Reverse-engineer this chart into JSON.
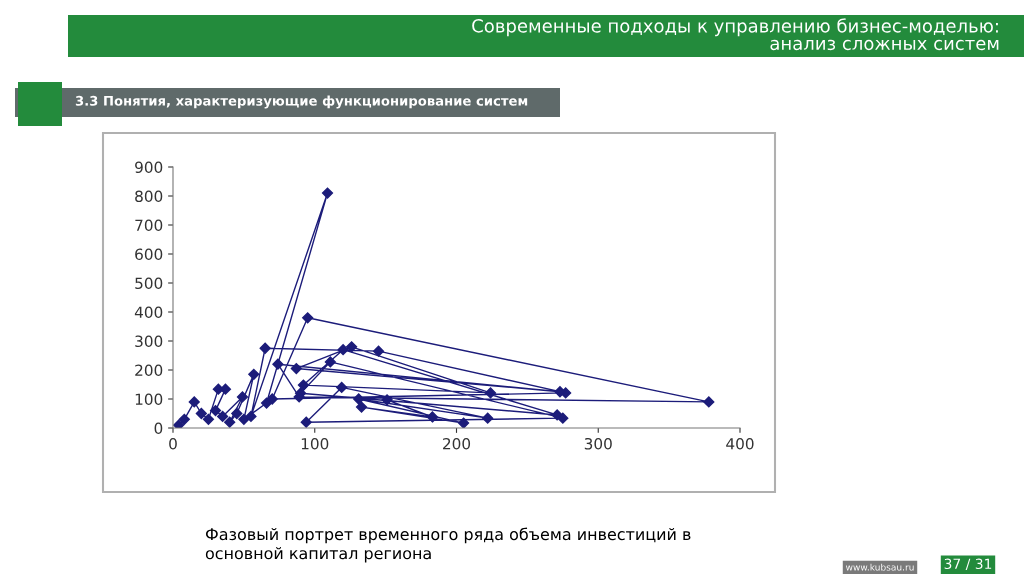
{
  "chart_data": {
    "type": "line",
    "title": "Современные подходы к управлению бизнес-моделью:\nанализ сложных систем",
    "subtitle": "3.3 Понятия, характеризующие функционирование систем",
    "annotations": [
      "Фазовый портрет временного ряда объема инвестиций в\nосновной капитал региона",
      "37 / 31",
      "www.kubsau.ru"
    ],
    "series": [
      {
        "color": "#1c1c7a",
        "x": [
          4,
          8,
          15,
          20,
          25,
          32,
          37,
          30,
          35,
          49,
          40,
          45,
          57,
          50,
          66,
          109,
          55,
          65,
          145,
          277,
          70,
          95,
          378,
          89,
          74,
          273,
          87,
          126,
          224,
          92,
          120,
          271,
          90,
          111,
          275,
          94,
          119,
          222,
          131,
          205,
          133,
          183,
          151
        ],
        "values": [
          10,
          30,
          90,
          50,
          30,
          134,
          134,
          60,
          40,
          107,
          20,
          50,
          185,
          30,
          86,
          810,
          40,
          275,
          265,
          121,
          100,
          380,
          90,
          107,
          220,
          125,
          205,
          280,
          121,
          148,
          270,
          45,
          120,
          228,
          34,
          20,
          140,
          34,
          100,
          17,
          72,
          38,
          97
        ]
      }
    ],
    "xlim": [
      0,
      400
    ],
    "xticks": [
      0,
      100,
      200,
      300,
      400
    ],
    "ylim": [
      0,
      900
    ],
    "yticks": [
      0,
      100,
      200,
      300,
      400,
      500,
      600,
      700,
      800,
      900
    ],
    "marker": "diamond",
    "line_style": "solid",
    "grid": false,
    "legend": false
  }
}
